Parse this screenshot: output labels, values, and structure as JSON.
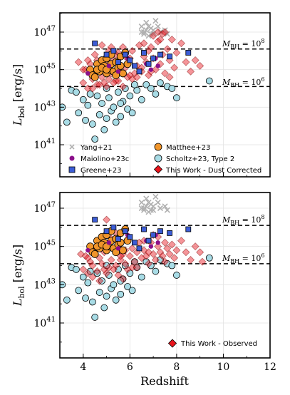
{
  "chart_data": [
    {
      "type": "scatter",
      "panel": "top",
      "xlabel": "",
      "ylabel": "L_bol [erg/s]",
      "xlim": [
        3,
        12
      ],
      "ylim_log10": [
        40,
        48.3
      ],
      "y_scale": "log",
      "x_ticks": [
        4,
        6,
        8,
        10,
        12
      ],
      "y_tick_labels": [
        "10^41",
        "10^43",
        "10^45",
        "10^47"
      ],
      "grid": true,
      "hlines": [
        {
          "log10_y": 46.1,
          "label": "M_BH = 10^8"
        },
        {
          "log10_y": 44.1,
          "label": "M_BH = 10^6"
        }
      ],
      "legend_position": "bottom",
      "legend": [
        {
          "label": "Yang+21",
          "marker": "x",
          "color": "#b0b0b0"
        },
        {
          "label": "Matthee+23",
          "marker": "circle",
          "color": "#f0952b"
        },
        {
          "label": "Maiolino+23c",
          "marker": "small-circle",
          "color": "#8a0f8a"
        },
        {
          "label": "Scholtz+23, Type 2",
          "marker": "circle",
          "color": "#a8dce6"
        },
        {
          "label": "Greene+23",
          "marker": "square",
          "color": "#3c5dd6"
        },
        {
          "label": "This Work - Dust Corrected",
          "marker": "diamond",
          "color": "#e8141c"
        }
      ]
    },
    {
      "type": "scatter",
      "panel": "bottom",
      "xlabel": "Redshift",
      "ylabel": "L_bol [erg/s]",
      "xlim": [
        3,
        12
      ],
      "ylim_log10": [
        40,
        48.3
      ],
      "y_scale": "log",
      "x_ticks": [
        4,
        6,
        8,
        10,
        12
      ],
      "y_tick_labels": [
        "10^41",
        "10^43",
        "10^45",
        "10^47"
      ],
      "grid": true,
      "hlines": [
        {
          "log10_y": 46.1,
          "label": "M_BH = 10^8"
        },
        {
          "log10_y": 44.1,
          "label": "M_BH = 10^6"
        }
      ],
      "legend_position": "bottom-right",
      "legend": [
        {
          "label": "This Work - Observed",
          "marker": "diamond",
          "color": "#e8141c"
        }
      ]
    }
  ],
  "series_data": {
    "yang21": [
      [
        6.5,
        47.3
      ],
      [
        6.6,
        47.0
      ],
      [
        6.7,
        47.5
      ],
      [
        6.8,
        46.8
      ],
      [
        6.9,
        47.2
      ],
      [
        7.0,
        47.1
      ],
      [
        6.6,
        46.9
      ],
      [
        6.8,
        47.3
      ],
      [
        7.1,
        47.6
      ],
      [
        7.0,
        46.9
      ],
      [
        7.2,
        47.3
      ],
      [
        7.5,
        47.1
      ],
      [
        6.7,
        47.1
      ],
      [
        6.9,
        46.9
      ],
      [
        7.3,
        47.0
      ],
      [
        6.5,
        47.0
      ],
      [
        7.6,
        46.9
      ]
    ],
    "matthee23": [
      [
        4.3,
        45.0
      ],
      [
        4.4,
        44.7
      ],
      [
        4.6,
        45.3
      ],
      [
        4.7,
        44.9
      ],
      [
        4.8,
        45.5
      ],
      [
        4.9,
        45.2
      ],
      [
        5.0,
        44.8
      ],
      [
        5.0,
        45.6
      ],
      [
        5.1,
        45.0
      ],
      [
        5.2,
        45.3
      ],
      [
        5.3,
        44.9
      ],
      [
        5.4,
        45.4
      ],
      [
        5.5,
        45.1
      ],
      [
        5.6,
        45.7
      ],
      [
        5.7,
        44.8
      ],
      [
        5.8,
        45.9
      ],
      [
        5.9,
        45.3
      ],
      [
        4.5,
        44.6
      ],
      [
        5.2,
        45.8
      ],
      [
        4.6,
        45.0
      ],
      [
        5.4,
        44.7
      ],
      [
        5.6,
        45.2
      ],
      [
        4.8,
        45.1
      ],
      [
        5.0,
        45.0
      ]
    ],
    "maiolino23c": [
      [
        4.2,
        44.8
      ],
      [
        5.1,
        45.2
      ],
      [
        5.5,
        44.9
      ],
      [
        6.7,
        45.3
      ],
      [
        6.9,
        45.0
      ],
      [
        7.1,
        45.6
      ],
      [
        7.2,
        45.2
      ],
      [
        5.9,
        45.6
      ]
    ],
    "scholtz23": [
      [
        3.1,
        43.0
      ],
      [
        3.3,
        42.2
      ],
      [
        3.5,
        43.9
      ],
      [
        3.7,
        43.8
      ],
      [
        3.8,
        42.7
      ],
      [
        4.0,
        43.4
      ],
      [
        4.1,
        42.3
      ],
      [
        4.2,
        43.1
      ],
      [
        4.4,
        42.1
      ],
      [
        4.5,
        41.3
      ],
      [
        4.6,
        43.6
      ],
      [
        4.7,
        42.6
      ],
      [
        4.8,
        43.2
      ],
      [
        4.9,
        41.8
      ],
      [
        5.0,
        44.0
      ],
      [
        5.1,
        43.5
      ],
      [
        5.2,
        42.8
      ],
      [
        5.3,
        43.0
      ],
      [
        5.4,
        42.2
      ],
      [
        5.5,
        43.8
      ],
      [
        5.6,
        42.5
      ],
      [
        5.7,
        43.3
      ],
      [
        5.8,
        44.0
      ],
      [
        5.9,
        42.9
      ],
      [
        6.0,
        43.6
      ],
      [
        6.1,
        42.7
      ],
      [
        6.3,
        43.9
      ],
      [
        6.5,
        43.4
      ],
      [
        6.7,
        44.2
      ],
      [
        6.9,
        44.0
      ],
      [
        7.1,
        43.7
      ],
      [
        7.3,
        44.3
      ],
      [
        7.6,
        44.1
      ],
      [
        8.0,
        43.5
      ],
      [
        9.4,
        44.4
      ],
      [
        4.3,
        43.7
      ],
      [
        5.0,
        42.4
      ],
      [
        6.2,
        44.2
      ],
      [
        7.8,
        44.0
      ],
      [
        5.6,
        43.2
      ]
    ],
    "greene23": [
      [
        4.5,
        46.4
      ],
      [
        5.0,
        45.8
      ],
      [
        5.5,
        45.4
      ],
      [
        5.8,
        45.8
      ],
      [
        6.2,
        45.2
      ],
      [
        6.4,
        44.9
      ],
      [
        6.6,
        45.9
      ],
      [
        6.8,
        45.3
      ],
      [
        7.0,
        45.6
      ],
      [
        7.3,
        45.8
      ],
      [
        8.5,
        45.9
      ],
      [
        6.0,
        45.5
      ],
      [
        7.7,
        45.7
      ],
      [
        5.3,
        46.0
      ]
    ],
    "dust": [
      [
        4.0,
        44.3
      ],
      [
        4.1,
        45.0
      ],
      [
        4.2,
        44.0
      ],
      [
        4.3,
        45.3
      ],
      [
        4.4,
        44.5
      ],
      [
        4.5,
        45.8
      ],
      [
        4.6,
        44.2
      ],
      [
        4.7,
        45.0
      ],
      [
        4.8,
        44.6
      ],
      [
        4.9,
        45.4
      ],
      [
        5.0,
        44.1
      ],
      [
        5.1,
        46.0
      ],
      [
        5.2,
        44.8
      ],
      [
        5.3,
        45.5
      ],
      [
        5.4,
        44.4
      ],
      [
        5.5,
        45.9
      ],
      [
        5.6,
        44.9
      ],
      [
        5.7,
        46.2
      ],
      [
        5.8,
        45.1
      ],
      [
        5.9,
        44.6
      ],
      [
        6.0,
        45.6
      ],
      [
        6.1,
        46.0
      ],
      [
        6.2,
        44.8
      ],
      [
        6.3,
        45.2
      ],
      [
        6.4,
        46.3
      ],
      [
        6.5,
        44.9
      ],
      [
        6.6,
        45.7
      ],
      [
        6.7,
        45.4
      ],
      [
        6.8,
        44.7
      ],
      [
        6.9,
        46.2
      ],
      [
        7.0,
        45.6
      ],
      [
        7.1,
        45.0
      ],
      [
        7.2,
        46.5
      ],
      [
        7.3,
        45.3
      ],
      [
        7.4,
        45.8
      ],
      [
        7.5,
        44.8
      ],
      [
        7.6,
        46.1
      ],
      [
        7.7,
        45.5
      ],
      [
        7.8,
        46.6
      ],
      [
        7.9,
        45.1
      ],
      [
        8.0,
        45.9
      ],
      [
        8.2,
        46.4
      ],
      [
        8.4,
        45.4
      ],
      [
        8.6,
        44.9
      ],
      [
        8.8,
        45.5
      ],
      [
        9.0,
        45.2
      ],
      [
        4.4,
        44.0
      ],
      [
        4.6,
        45.5
      ],
      [
        4.9,
        44.3
      ],
      [
        5.2,
        46.2
      ],
      [
        5.5,
        44.4
      ],
      [
        5.8,
        45.7
      ],
      [
        6.1,
        44.5
      ],
      [
        6.6,
        46.4
      ],
      [
        7.0,
        46.8
      ],
      [
        7.2,
        47.0
      ],
      [
        7.4,
        46.9
      ],
      [
        3.8,
        45.4
      ],
      [
        4.2,
        45.5
      ],
      [
        4.0,
        45.0
      ],
      [
        4.7,
        44.2
      ],
      [
        5.0,
        44.9
      ],
      [
        5.3,
        44.3
      ],
      [
        5.6,
        45.2
      ],
      [
        6.3,
        44.6
      ],
      [
        6.8,
        46.0
      ],
      [
        7.5,
        47.0
      ],
      [
        4.8,
        46.3
      ],
      [
        5.1,
        44.5
      ],
      [
        5.4,
        45.8
      ],
      [
        5.7,
        44.1
      ],
      [
        6.0,
        44.7
      ],
      [
        6.5,
        45.1
      ],
      [
        6.9,
        44.9
      ],
      [
        7.3,
        46.6
      ],
      [
        7.7,
        44.6
      ]
    ],
    "observed": [
      [
        4.0,
        43.8
      ],
      [
        4.1,
        44.5
      ],
      [
        4.2,
        43.6
      ],
      [
        4.3,
        44.2
      ],
      [
        4.4,
        44.0
      ],
      [
        4.5,
        44.8
      ],
      [
        4.6,
        43.7
      ],
      [
        4.7,
        44.4
      ],
      [
        4.8,
        44.1
      ],
      [
        4.9,
        44.7
      ],
      [
        5.0,
        43.6
      ],
      [
        5.1,
        45.1
      ],
      [
        5.2,
        44.3
      ],
      [
        5.3,
        44.9
      ],
      [
        5.4,
        44.0
      ],
      [
        5.5,
        45.0
      ],
      [
        5.6,
        44.3
      ],
      [
        5.7,
        44.6
      ],
      [
        5.8,
        44.1
      ],
      [
        5.9,
        43.8
      ],
      [
        6.0,
        44.5
      ],
      [
        6.1,
        44.9
      ],
      [
        6.2,
        44.2
      ],
      [
        6.3,
        44.7
      ],
      [
        6.4,
        45.2
      ],
      [
        6.5,
        44.4
      ],
      [
        6.6,
        44.8
      ],
      [
        6.7,
        44.5
      ],
      [
        6.8,
        44.1
      ],
      [
        6.9,
        45.2
      ],
      [
        7.0,
        44.6
      ],
      [
        7.1,
        44.3
      ],
      [
        7.2,
        45.0
      ],
      [
        7.3,
        44.7
      ],
      [
        7.4,
        44.5
      ],
      [
        7.5,
        44.2
      ],
      [
        7.6,
        44.9
      ],
      [
        7.7,
        44.6
      ],
      [
        7.8,
        45.1
      ],
      [
        7.9,
        44.4
      ],
      [
        8.0,
        44.8
      ],
      [
        8.2,
        45.3
      ],
      [
        8.4,
        44.7
      ],
      [
        8.6,
        44.3
      ],
      [
        8.8,
        45.0
      ],
      [
        9.0,
        44.7
      ],
      [
        9.1,
        44.2
      ],
      [
        4.4,
        43.4
      ],
      [
        4.6,
        44.9
      ],
      [
        4.9,
        43.8
      ],
      [
        5.2,
        45.4
      ],
      [
        5.5,
        43.5
      ],
      [
        5.8,
        44.8
      ],
      [
        6.1,
        43.9
      ],
      [
        6.6,
        45.3
      ],
      [
        7.0,
        45.6
      ],
      [
        5.0,
        46.4
      ],
      [
        5.4,
        45.7
      ],
      [
        7.2,
        45.5
      ],
      [
        3.9,
        44.6
      ],
      [
        4.2,
        44.4
      ],
      [
        4.7,
        43.2
      ],
      [
        5.3,
        43.8
      ],
      [
        5.6,
        44.5
      ],
      [
        6.3,
        43.9
      ],
      [
        6.8,
        44.7
      ],
      [
        7.5,
        45.2
      ],
      [
        4.8,
        45.3
      ],
      [
        5.1,
        43.9
      ],
      [
        5.7,
        43.3
      ]
    ]
  }
}
